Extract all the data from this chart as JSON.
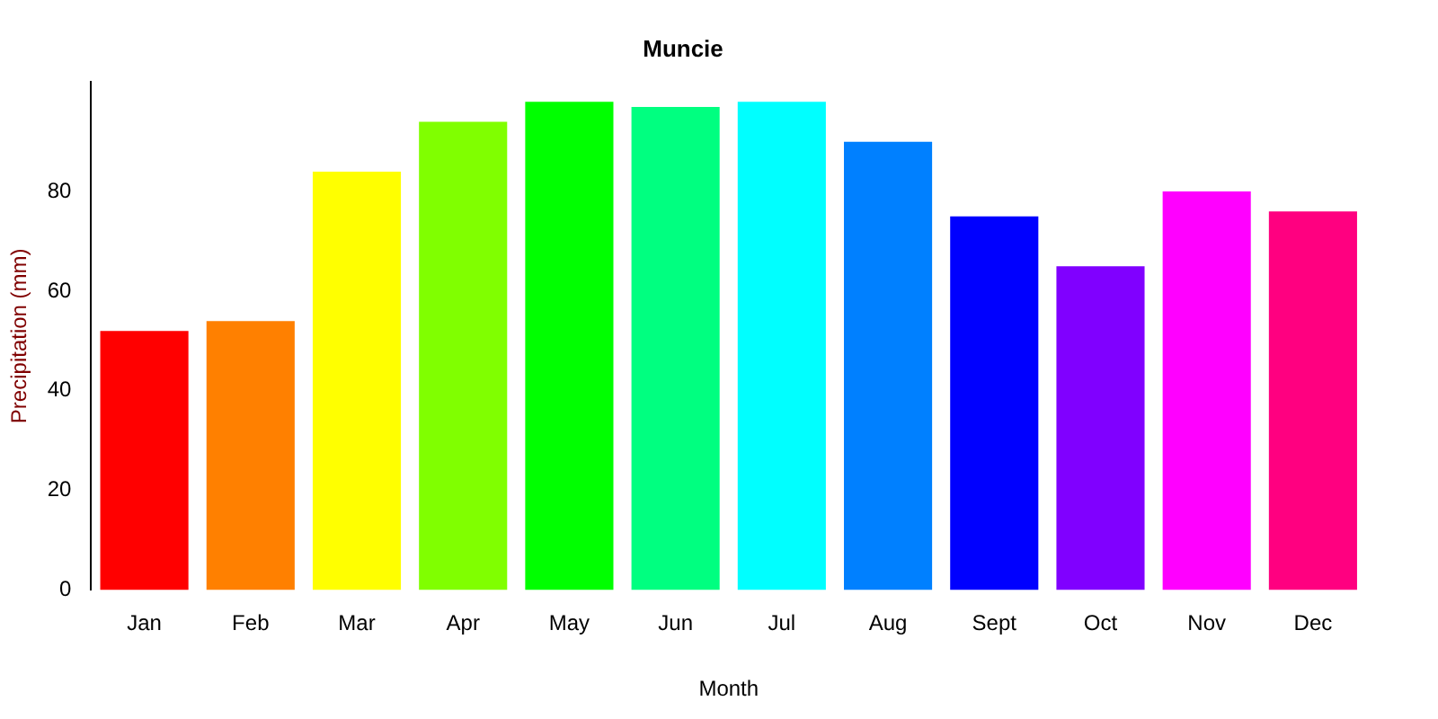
{
  "chart_data": {
    "type": "bar",
    "title": "Muncie",
    "xlabel": "Month",
    "ylabel": "Precipitation (mm)",
    "categories": [
      "Jan",
      "Feb",
      "Mar",
      "Apr",
      "May",
      "Jun",
      "Jul",
      "Aug",
      "Sept",
      "Oct",
      "Nov",
      "Dec"
    ],
    "values": [
      52,
      54,
      84,
      94,
      98,
      97,
      98,
      90,
      75,
      65,
      80,
      76
    ],
    "colors": [
      "#ff0000",
      "#ff8000",
      "#ffff00",
      "#80ff00",
      "#00ff00",
      "#00ff80",
      "#00ffff",
      "#0080ff",
      "#0000ff",
      "#8000ff",
      "#ff00ff",
      "#ff0080"
    ],
    "ylim": [
      0,
      102
    ],
    "yticks": [
      0,
      20,
      40,
      60,
      80
    ],
    "grid": false,
    "legend": false
  }
}
